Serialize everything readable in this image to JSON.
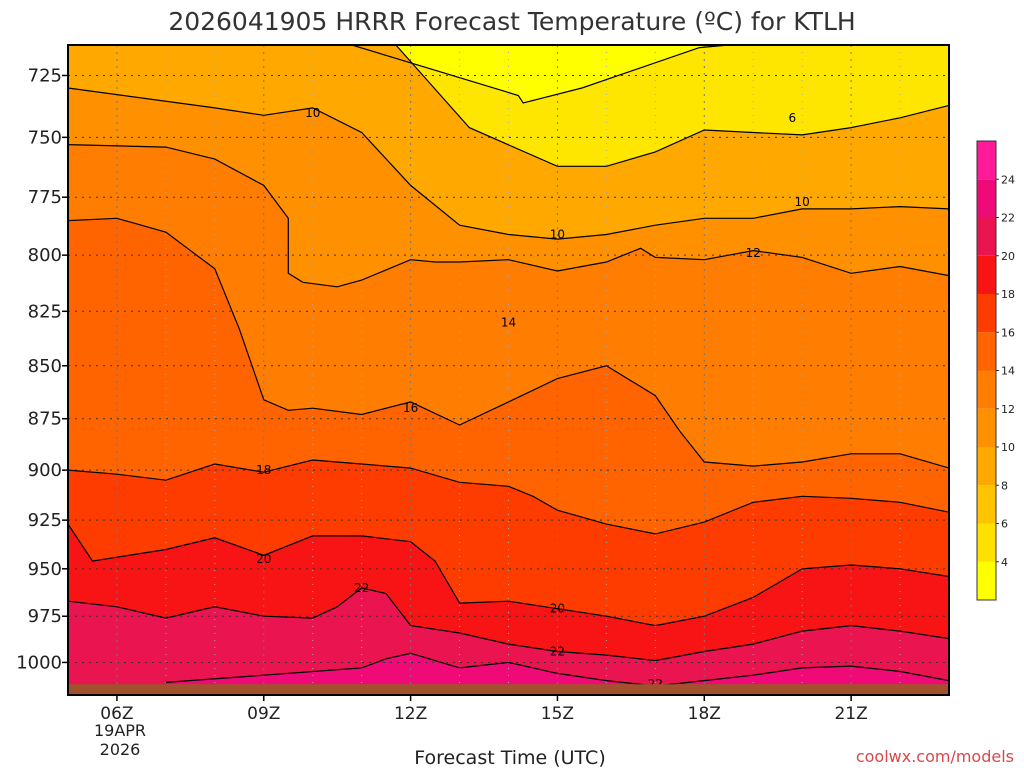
{
  "title": "2026041905 HRRR Forecast Temperature (ºC) for KTLH",
  "credit": "coolwx.com/models",
  "colors": {
    "fill_levels": [
      {
        "min": 6,
        "max": 8,
        "color": "#ffc400"
      },
      {
        "min": 8,
        "max": 10,
        "color": "#ffa800"
      },
      {
        "min": 10,
        "max": 12,
        "color": "#ff9000"
      },
      {
        "min": 12,
        "max": 14,
        "color": "#ff7d00"
      },
      {
        "min": 14,
        "max": 16,
        "color": "#ff6400"
      },
      {
        "min": 16,
        "max": 18,
        "color": "#ff3c00"
      },
      {
        "min": 18,
        "max": 20,
        "color": "#f81414"
      },
      {
        "min": 20,
        "max": 22,
        "color": "#ea1450"
      },
      {
        "min": 22,
        "max": 24,
        "color": "#f00a78"
      }
    ],
    "ground": "#a0522d"
  },
  "chart_data": {
    "type": "heatmap",
    "title": "2026041905 HRRR Forecast Temperature (ºC) for KTLH",
    "xlabel": "Forecast Time (UTC)",
    "ylabel": "",
    "x_ticks": [
      "06Z",
      "09Z",
      "12Z",
      "15Z",
      "18Z",
      "21Z"
    ],
    "x_tick_hours": [
      6,
      9,
      12,
      15,
      18,
      21
    ],
    "x_range_hours": [
      5,
      23
    ],
    "date_label": [
      "19APR",
      "2026"
    ],
    "y_ticks": [
      725,
      750,
      775,
      800,
      825,
      850,
      875,
      900,
      925,
      950,
      975,
      1000
    ],
    "y_range_hpa": [
      713,
      1018
    ],
    "y_scale": "log",
    "grid": true,
    "colorbar_ticks": [
      4,
      6,
      8,
      10,
      12,
      14,
      16,
      18,
      20,
      22,
      24
    ],
    "colorbar_range": [
      2,
      26
    ],
    "colorbar_colors": [
      "#ffff00",
      "#ffe000",
      "#ffc400",
      "#ffa800",
      "#ff9000",
      "#ff7d00",
      "#ff6400",
      "#ff3c00",
      "#f81414",
      "#ea1450",
      "#f00a78",
      "#ff1a9a"
    ],
    "contour_interval": 2,
    "contours": [
      {
        "level": 6,
        "points": [
          [
            9.9,
            713
          ],
          [
            10.8,
            713
          ],
          [
            14.2,
            733
          ],
          [
            14.3,
            736
          ],
          [
            15.5,
            730
          ],
          [
            17.9,
            714
          ],
          [
            18.5,
            713
          ],
          [
            18.9,
            713
          ],
          [
            21.0,
            713
          ]
        ],
        "labels": [
          [
            19.8,
            742
          ]
        ]
      },
      {
        "level": 8,
        "points": [
          [
            11.7,
            713
          ],
          [
            13.2,
            746
          ],
          [
            15.0,
            762
          ],
          [
            16.0,
            762
          ],
          [
            17.0,
            756
          ],
          [
            18.0,
            747
          ],
          [
            19.0,
            748
          ],
          [
            20.0,
            749
          ],
          [
            21.0,
            746
          ],
          [
            22.0,
            742
          ],
          [
            23.0,
            737
          ]
        ],
        "labels": []
      },
      {
        "level": 10,
        "points": [
          [
            5.0,
            730
          ],
          [
            8.0,
            738
          ],
          [
            9.0,
            741
          ],
          [
            10.0,
            738
          ],
          [
            11.0,
            748
          ],
          [
            12.0,
            770
          ],
          [
            13.0,
            787
          ],
          [
            14.0,
            791
          ],
          [
            15.0,
            793
          ],
          [
            16.0,
            791
          ],
          [
            17.0,
            787
          ],
          [
            18.0,
            784
          ],
          [
            19.0,
            784
          ],
          [
            20.0,
            780
          ],
          [
            21.0,
            780
          ],
          [
            22.0,
            779
          ],
          [
            23.0,
            780
          ]
        ],
        "labels": [
          [
            10.0,
            740
          ],
          [
            15.0,
            791
          ],
          [
            20.0,
            777
          ]
        ]
      },
      {
        "level": 12,
        "points": [
          [
            5.0,
            753
          ],
          [
            7.0,
            754
          ],
          [
            8.0,
            759
          ],
          [
            9.0,
            770
          ],
          [
            9.5,
            784
          ],
          [
            9.5,
            808
          ],
          [
            9.8,
            812
          ],
          [
            10.5,
            814
          ],
          [
            11.0,
            811
          ],
          [
            12.0,
            802
          ],
          [
            12.5,
            803
          ],
          [
            13.0,
            803
          ],
          [
            14.0,
            802
          ],
          [
            15.0,
            807
          ],
          [
            16.0,
            803
          ],
          [
            16.7,
            797
          ],
          [
            17.0,
            801
          ],
          [
            18.0,
            802
          ],
          [
            19.0,
            798
          ],
          [
            20.0,
            801
          ],
          [
            21.0,
            808
          ],
          [
            22.0,
            805
          ],
          [
            23.0,
            809
          ]
        ],
        "labels": [
          [
            19.0,
            799
          ]
        ]
      },
      {
        "level": 14,
        "points": [
          [
            5.0,
            785
          ],
          [
            6.0,
            784
          ],
          [
            7.0,
            790
          ],
          [
            8.0,
            806
          ],
          [
            8.5,
            833
          ],
          [
            9.0,
            866
          ],
          [
            9.5,
            871
          ],
          [
            10.0,
            870
          ],
          [
            11.0,
            873
          ],
          [
            12.0,
            867
          ],
          [
            13.0,
            878
          ],
          [
            14.0,
            867
          ],
          [
            15.0,
            856
          ],
          [
            16.0,
            850
          ],
          [
            17.0,
            864
          ],
          [
            17.5,
            881
          ],
          [
            18.0,
            896
          ],
          [
            19.0,
            898
          ],
          [
            20.0,
            896
          ],
          [
            21.0,
            892
          ],
          [
            22.0,
            892
          ],
          [
            23.0,
            899
          ]
        ],
        "labels": [
          [
            14.0,
            830
          ]
        ]
      },
      {
        "level": 16,
        "points": [
          [
            5.0,
            900
          ],
          [
            6.0,
            902
          ],
          [
            7.0,
            905
          ],
          [
            8.0,
            897
          ],
          [
            9.0,
            901
          ],
          [
            10.0,
            895
          ],
          [
            11.0,
            897
          ],
          [
            12.0,
            899
          ],
          [
            13.0,
            906
          ],
          [
            14.0,
            908
          ],
          [
            14.5,
            913
          ],
          [
            15.0,
            920
          ],
          [
            16.0,
            927
          ],
          [
            17.0,
            932
          ],
          [
            18.0,
            926
          ],
          [
            19.0,
            916
          ],
          [
            20.0,
            913
          ],
          [
            21.0,
            914
          ],
          [
            22.0,
            916
          ],
          [
            23.0,
            921
          ]
        ],
        "labels": [
          [
            12.0,
            870
          ]
        ]
      },
      {
        "level": 18,
        "points": [
          [
            5.0,
            927
          ],
          [
            5.5,
            946
          ],
          [
            6.0,
            944
          ],
          [
            7.0,
            940
          ],
          [
            8.0,
            934
          ],
          [
            9.0,
            943
          ],
          [
            10.0,
            933
          ],
          [
            11.0,
            933
          ],
          [
            12.0,
            936
          ],
          [
            12.5,
            946
          ],
          [
            13.0,
            968
          ],
          [
            14.0,
            967
          ],
          [
            15.0,
            971
          ],
          [
            16.0,
            975
          ],
          [
            17.0,
            980
          ],
          [
            18.0,
            975
          ],
          [
            19.0,
            965
          ],
          [
            20.0,
            950
          ],
          [
            21.0,
            948
          ],
          [
            22.0,
            950
          ],
          [
            23.0,
            954
          ]
        ],
        "labels": [
          [
            9.0,
            900
          ]
        ]
      },
      {
        "level": 20,
        "points": [
          [
            5.0,
            967
          ],
          [
            6.0,
            970
          ],
          [
            7.0,
            976
          ],
          [
            8.0,
            970
          ],
          [
            9.0,
            975
          ],
          [
            10.0,
            976
          ],
          [
            10.5,
            970
          ],
          [
            11.0,
            960
          ],
          [
            11.5,
            963
          ],
          [
            12.0,
            980
          ],
          [
            13.0,
            984
          ],
          [
            14.0,
            990
          ],
          [
            15.0,
            994
          ],
          [
            16.0,
            996
          ],
          [
            17.0,
            999
          ],
          [
            18.0,
            994
          ],
          [
            19.0,
            990
          ],
          [
            20.0,
            983
          ],
          [
            21.0,
            980
          ],
          [
            22.0,
            983
          ],
          [
            23.0,
            987
          ]
        ],
        "labels": [
          [
            9.0,
            945
          ],
          [
            15.0,
            971
          ]
        ]
      },
      {
        "level": 22,
        "points": [
          [
            7.0,
            1011
          ],
          [
            9.0,
            1007
          ],
          [
            11.0,
            1003
          ],
          [
            11.5,
            998
          ],
          [
            12.0,
            995
          ],
          [
            13.0,
            1003
          ],
          [
            14.0,
            1000
          ],
          [
            15.0,
            1006
          ],
          [
            16.0,
            1010
          ],
          [
            17.0,
            1013
          ],
          [
            18.0,
            1010
          ],
          [
            19.0,
            1007
          ],
          [
            20.0,
            1003
          ],
          [
            21.0,
            1002
          ],
          [
            22.0,
            1005
          ],
          [
            23.0,
            1010
          ]
        ],
        "labels": [
          [
            11.0,
            960
          ],
          [
            15.0,
            994
          ],
          [
            17.0,
            1012
          ]
        ]
      }
    ],
    "ground_level_hpa": 1012
  },
  "credit_text": "coolwx.com/models"
}
